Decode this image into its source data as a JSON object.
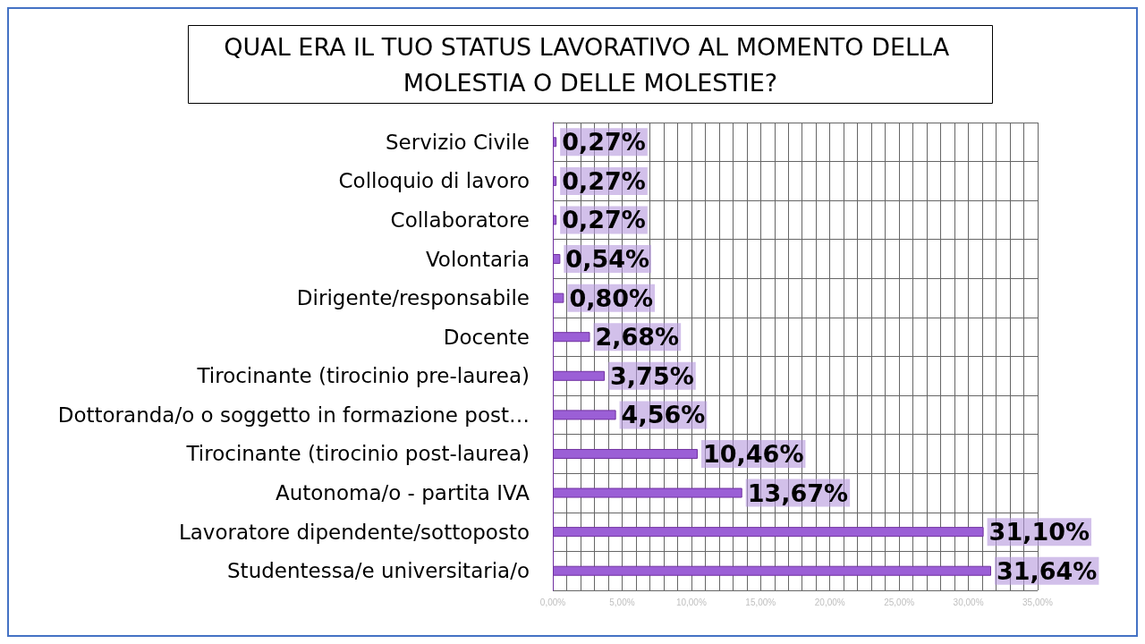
{
  "chart_data": {
    "type": "bar",
    "orientation": "horizontal",
    "title": "QUAL ERA IL TUO STATUS LAVORATIVO AL MOMENTO DELLA MOLESTIA O DELLE MOLESTIE?",
    "categories": [
      "Servizio Civile",
      "Colloquio di lavoro",
      "Collaboratore",
      "Volontaria",
      "Dirigente/responsabile",
      "Docente",
      "Tirocinante (tirocinio pre-laurea)",
      "Dottoranda/o o soggetto in formazione post…",
      "Tirocinante (tirocinio post-laurea)",
      "Autonoma/o - partita IVA",
      "Lavoratore dipendente/sottoposto",
      "Studentessa/e universitaria/o"
    ],
    "values": [
      0.27,
      0.27,
      0.27,
      0.54,
      0.8,
      2.68,
      3.75,
      4.56,
      10.46,
      13.67,
      31.1,
      31.64
    ],
    "value_labels": [
      "0,27%",
      "0,27%",
      "0,27%",
      "0,54%",
      "0,80%",
      "2,68%",
      "3,75%",
      "4,56%",
      "10,46%",
      "13,67%",
      "31,10%",
      "31,64%"
    ],
    "color": "#9b5fd6",
    "xlim": [
      0,
      35
    ],
    "xticks": [
      {
        "value": 0,
        "label": "0,00%"
      },
      {
        "value": 5,
        "label": "5,00%"
      },
      {
        "value": 10,
        "label": "10,00%"
      },
      {
        "value": 15,
        "label": "15,00%"
      },
      {
        "value": 20,
        "label": "20,00%"
      },
      {
        "value": 25,
        "label": "25,00%"
      },
      {
        "value": 30,
        "label": "30,00%"
      },
      {
        "value": 35,
        "label": "35,00%"
      }
    ],
    "grid": true
  }
}
